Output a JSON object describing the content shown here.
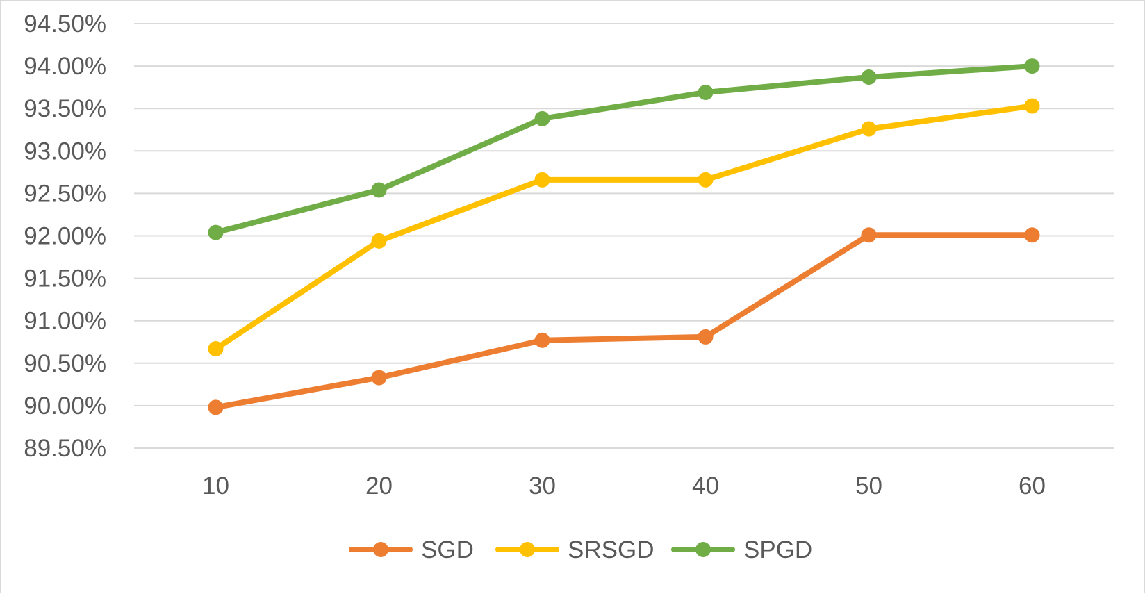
{
  "chart_data": {
    "type": "line",
    "title": "",
    "xlabel": "",
    "ylabel": "",
    "categories": [
      "10",
      "20",
      "30",
      "40",
      "50",
      "60"
    ],
    "ylim": [
      89.5,
      94.5
    ],
    "y_tick_step": 0.5,
    "y_ticks": [
      "89.50%",
      "90.00%",
      "90.50%",
      "91.00%",
      "91.50%",
      "92.00%",
      "92.50%",
      "93.00%",
      "93.50%",
      "94.00%",
      "94.50%"
    ],
    "grid": true,
    "legend_position": "bottom",
    "series": [
      {
        "name": "SGD",
        "color": "#ED7D31",
        "values": [
          89.98,
          90.33,
          90.77,
          90.81,
          92.01,
          92.01
        ]
      },
      {
        "name": "SRSGD",
        "color": "#FFC000",
        "values": [
          90.67,
          91.94,
          92.66,
          92.66,
          93.26,
          93.53
        ]
      },
      {
        "name": "SPGD",
        "color": "#70AD47",
        "values": [
          92.04,
          92.54,
          93.38,
          93.69,
          93.87,
          94.0
        ]
      }
    ]
  }
}
